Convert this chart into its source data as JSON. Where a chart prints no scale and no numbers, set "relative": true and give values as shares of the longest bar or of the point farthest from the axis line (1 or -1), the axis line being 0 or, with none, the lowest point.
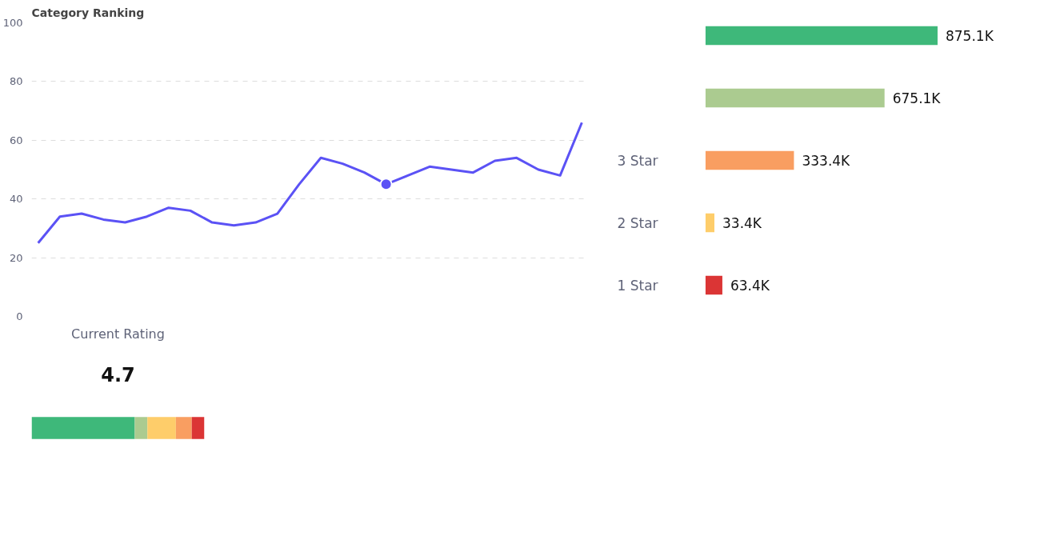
{
  "chart_data": [
    {
      "type": "line",
      "title": "Category Ranking",
      "tick_labels": "y",
      "grid": "y",
      "line_style": "solid",
      "categories": [
        null,
        null,
        null,
        null,
        null,
        null,
        null,
        null,
        null,
        null,
        null,
        null,
        null,
        null,
        null,
        null,
        null,
        null,
        null,
        null,
        null,
        null,
        null,
        null,
        null,
        null
      ],
      "ylim": [
        0,
        100
      ],
      "yticks": [
        0,
        20,
        40,
        60,
        80,
        100
      ],
      "series": [
        {
          "type": "line",
          "color": "#5b52f5",
          "values": [
            25,
            34,
            35,
            33,
            32,
            34,
            37,
            36,
            32,
            31,
            32,
            35,
            45,
            54,
            52,
            49,
            45,
            48,
            51,
            50,
            49,
            53,
            54,
            50,
            48,
            66
          ]
        },
        {
          "type": "scatter",
          "marker": "circle",
          "color": "#5b52f5",
          "values": [
            null,
            null,
            null,
            null,
            null,
            null,
            null,
            null,
            null,
            null,
            null,
            null,
            null,
            null,
            null,
            null,
            45,
            null,
            null,
            null,
            null,
            null,
            null,
            null,
            null,
            null
          ]
        }
      ]
    },
    {
      "type": "bar",
      "orientation": "horizontal",
      "categories": [
        null,
        null,
        "3 Star",
        "2 Star",
        "1 Star"
      ],
      "values": [
        875.1,
        675.1,
        333.4,
        33.4,
        63.4
      ],
      "value_labels": [
        "875.1K",
        "675.1K",
        "333.4K",
        "33.4K",
        "63.4K"
      ],
      "colors": [
        "#3eb87a",
        "#abcb90",
        "#f99e61",
        "#fecd6a",
        "#db3535"
      ],
      "tick_labels": false
    },
    {
      "type": "bar",
      "orientation": "horizontal",
      "stacked": true,
      "relative": true,
      "title": "Current Rating",
      "annotations": [
        "4.7"
      ],
      "categories": [
        null
      ],
      "tick_labels": false,
      "series": [
        {
          "color": "#3eb87a",
          "values": [
            0.597
          ]
        },
        {
          "color": "#abcb90",
          "values": [
            0.073
          ]
        },
        {
          "color": "#fecd6a",
          "values": [
            0.165
          ]
        },
        {
          "color": "#f99e61",
          "values": [
            0.092
          ]
        },
        {
          "color": "#db3535",
          "values": [
            0.073
          ]
        }
      ]
    }
  ]
}
